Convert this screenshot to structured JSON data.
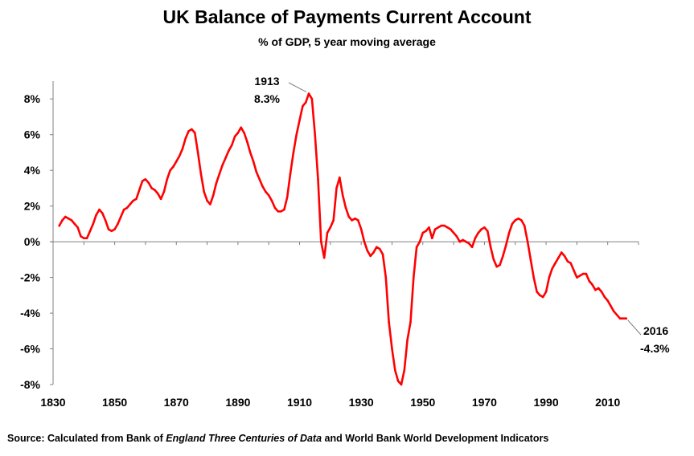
{
  "title": "UK Balance of Payments Current Account",
  "subtitle": "% of GDP, 5 year moving average",
  "source": {
    "part1": "Source: Calculated from Bank of ",
    "italic1": "England Three Centuries of Data",
    "part2": " and ",
    "part3": "World Bank World Development Indicators"
  },
  "colors": {
    "series": "#ff0000",
    "axis": "#808080",
    "text": "#000000"
  },
  "chart_data": {
    "type": "line",
    "title": "UK Balance of Payments Current Account",
    "subtitle": "% of GDP, 5 year moving average",
    "xlabel": "",
    "ylabel": "",
    "xlim": [
      1830,
      2020
    ],
    "ylim": [
      -8,
      9
    ],
    "grid": false,
    "legend": "none",
    "x_ticks": [
      1830,
      1850,
      1870,
      1890,
      1910,
      1930,
      1950,
      1970,
      1990,
      2010
    ],
    "x_tick_labels": [
      "1830",
      "1850",
      "1870",
      "1890",
      "1910",
      "1930",
      "1950",
      "1970",
      "1990",
      "2010"
    ],
    "y_ticks": [
      -8,
      -6,
      -4,
      -2,
      0,
      2,
      4,
      6,
      8
    ],
    "y_tick_labels": [
      "-8%",
      "-6%",
      "-4%",
      "-2%",
      "0%",
      "2%",
      "4%",
      "6%",
      "8%"
    ],
    "annotations": [
      {
        "x": 1913,
        "y": 8.3,
        "line1": "1913",
        "line2": "8.3%"
      },
      {
        "x": 2016,
        "y": -4.3,
        "line1": "2016",
        "line2": "-4.3%"
      }
    ],
    "series": [
      {
        "color": "#ff0000",
        "points": [
          [
            1832,
            0.9
          ],
          [
            1833,
            1.2
          ],
          [
            1834,
            1.4
          ],
          [
            1835,
            1.3
          ],
          [
            1836,
            1.2
          ],
          [
            1837,
            1.0
          ],
          [
            1838,
            0.8
          ],
          [
            1839,
            0.3
          ],
          [
            1840,
            0.2
          ],
          [
            1841,
            0.2
          ],
          [
            1842,
            0.6
          ],
          [
            1843,
            1.0
          ],
          [
            1844,
            1.5
          ],
          [
            1845,
            1.8
          ],
          [
            1846,
            1.6
          ],
          [
            1847,
            1.2
          ],
          [
            1848,
            0.7
          ],
          [
            1849,
            0.6
          ],
          [
            1850,
            0.7
          ],
          [
            1851,
            1.0
          ],
          [
            1852,
            1.4
          ],
          [
            1853,
            1.8
          ],
          [
            1854,
            1.9
          ],
          [
            1855,
            2.1
          ],
          [
            1856,
            2.3
          ],
          [
            1857,
            2.4
          ],
          [
            1858,
            2.9
          ],
          [
            1859,
            3.4
          ],
          [
            1860,
            3.5
          ],
          [
            1861,
            3.3
          ],
          [
            1862,
            3.0
          ],
          [
            1863,
            2.9
          ],
          [
            1864,
            2.7
          ],
          [
            1865,
            2.4
          ],
          [
            1866,
            2.8
          ],
          [
            1867,
            3.5
          ],
          [
            1868,
            4.0
          ],
          [
            1869,
            4.2
          ],
          [
            1870,
            4.5
          ],
          [
            1871,
            4.8
          ],
          [
            1872,
            5.2
          ],
          [
            1873,
            5.8
          ],
          [
            1874,
            6.2
          ],
          [
            1875,
            6.3
          ],
          [
            1876,
            6.1
          ],
          [
            1877,
            5.0
          ],
          [
            1878,
            3.8
          ],
          [
            1879,
            2.8
          ],
          [
            1880,
            2.3
          ],
          [
            1881,
            2.1
          ],
          [
            1882,
            2.6
          ],
          [
            1883,
            3.3
          ],
          [
            1884,
            3.8
          ],
          [
            1885,
            4.3
          ],
          [
            1886,
            4.7
          ],
          [
            1887,
            5.1
          ],
          [
            1888,
            5.4
          ],
          [
            1889,
            5.9
          ],
          [
            1890,
            6.1
          ],
          [
            1891,
            6.4
          ],
          [
            1892,
            6.1
          ],
          [
            1893,
            5.6
          ],
          [
            1894,
            5.0
          ],
          [
            1895,
            4.5
          ],
          [
            1896,
            3.9
          ],
          [
            1897,
            3.5
          ],
          [
            1898,
            3.1
          ],
          [
            1899,
            2.8
          ],
          [
            1900,
            2.6
          ],
          [
            1901,
            2.3
          ],
          [
            1902,
            1.9
          ],
          [
            1903,
            1.7
          ],
          [
            1904,
            1.7
          ],
          [
            1905,
            1.8
          ],
          [
            1906,
            2.5
          ],
          [
            1907,
            3.8
          ],
          [
            1908,
            5.0
          ],
          [
            1909,
            6.0
          ],
          [
            1910,
            6.8
          ],
          [
            1911,
            7.6
          ],
          [
            1912,
            7.8
          ],
          [
            1913,
            8.3
          ],
          [
            1914,
            8.0
          ],
          [
            1915,
            6.0
          ],
          [
            1916,
            3.5
          ],
          [
            1917,
            0.0
          ],
          [
            1918,
            -0.9
          ],
          [
            1919,
            0.5
          ],
          [
            1920,
            0.8
          ],
          [
            1921,
            1.2
          ],
          [
            1922,
            3.0
          ],
          [
            1923,
            3.6
          ],
          [
            1924,
            2.6
          ],
          [
            1925,
            1.9
          ],
          [
            1926,
            1.4
          ],
          [
            1927,
            1.2
          ],
          [
            1928,
            1.3
          ],
          [
            1929,
            1.2
          ],
          [
            1930,
            0.7
          ],
          [
            1931,
            0.0
          ],
          [
            1932,
            -0.5
          ],
          [
            1933,
            -0.8
          ],
          [
            1934,
            -0.6
          ],
          [
            1935,
            -0.3
          ],
          [
            1936,
            -0.4
          ],
          [
            1937,
            -0.7
          ],
          [
            1938,
            -2.0
          ],
          [
            1939,
            -4.5
          ],
          [
            1940,
            -6.0
          ],
          [
            1941,
            -7.2
          ],
          [
            1942,
            -7.8
          ],
          [
            1943,
            -8.0
          ],
          [
            1944,
            -7.2
          ],
          [
            1945,
            -5.5
          ],
          [
            1946,
            -4.5
          ],
          [
            1947,
            -2.0
          ],
          [
            1948,
            -0.3
          ],
          [
            1949,
            0.0
          ],
          [
            1950,
            0.5
          ],
          [
            1951,
            0.6
          ],
          [
            1952,
            0.8
          ],
          [
            1953,
            0.2
          ],
          [
            1954,
            0.7
          ],
          [
            1955,
            0.8
          ],
          [
            1956,
            0.9
          ],
          [
            1957,
            0.9
          ],
          [
            1958,
            0.8
          ],
          [
            1959,
            0.7
          ],
          [
            1960,
            0.5
          ],
          [
            1961,
            0.3
          ],
          [
            1962,
            0.0
          ],
          [
            1963,
            0.1
          ],
          [
            1964,
            0.0
          ],
          [
            1965,
            -0.1
          ],
          [
            1966,
            -0.3
          ],
          [
            1967,
            0.2
          ],
          [
            1968,
            0.5
          ],
          [
            1969,
            0.7
          ],
          [
            1970,
            0.8
          ],
          [
            1971,
            0.6
          ],
          [
            1972,
            -0.3
          ],
          [
            1973,
            -1.0
          ],
          [
            1974,
            -1.4
          ],
          [
            1975,
            -1.3
          ],
          [
            1976,
            -0.8
          ],
          [
            1977,
            -0.2
          ],
          [
            1978,
            0.5
          ],
          [
            1979,
            1.0
          ],
          [
            1980,
            1.2
          ],
          [
            1981,
            1.3
          ],
          [
            1982,
            1.2
          ],
          [
            1983,
            0.9
          ],
          [
            1984,
            0.0
          ],
          [
            1985,
            -1.0
          ],
          [
            1986,
            -2.0
          ],
          [
            1987,
            -2.8
          ],
          [
            1988,
            -3.0
          ],
          [
            1989,
            -3.1
          ],
          [
            1990,
            -2.8
          ],
          [
            1991,
            -2.0
          ],
          [
            1992,
            -1.5
          ],
          [
            1993,
            -1.2
          ],
          [
            1994,
            -0.9
          ],
          [
            1995,
            -0.6
          ],
          [
            1996,
            -0.8
          ],
          [
            1997,
            -1.1
          ],
          [
            1998,
            -1.2
          ],
          [
            1999,
            -1.6
          ],
          [
            2000,
            -2.0
          ],
          [
            2001,
            -1.9
          ],
          [
            2002,
            -1.8
          ],
          [
            2003,
            -1.8
          ],
          [
            2004,
            -2.2
          ],
          [
            2005,
            -2.4
          ],
          [
            2006,
            -2.7
          ],
          [
            2007,
            -2.6
          ],
          [
            2008,
            -2.8
          ],
          [
            2009,
            -3.1
          ],
          [
            2010,
            -3.3
          ],
          [
            2011,
            -3.6
          ],
          [
            2012,
            -3.9
          ],
          [
            2013,
            -4.1
          ],
          [
            2014,
            -4.3
          ],
          [
            2015,
            -4.3
          ],
          [
            2016,
            -4.3
          ]
        ]
      }
    ]
  }
}
